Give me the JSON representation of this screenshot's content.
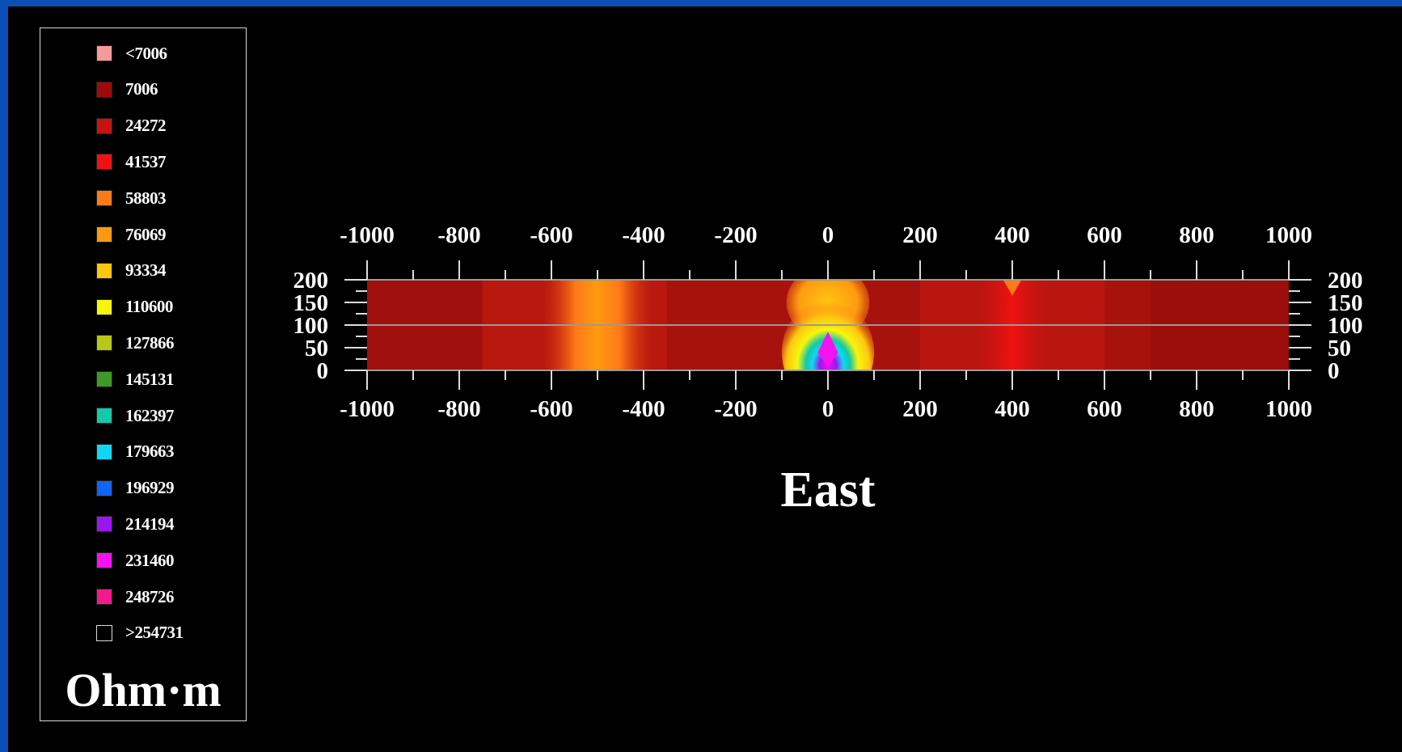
{
  "chart_data": {
    "type": "heatmap",
    "title": "",
    "xlabel": "East",
    "ylabel": "",
    "xlim": [
      -1000,
      1000
    ],
    "ylim": [
      0,
      200
    ],
    "x_ticks": [
      -1000,
      -800,
      -600,
      -400,
      -200,
      0,
      200,
      400,
      600,
      800,
      1000
    ],
    "y_ticks": [
      0,
      50,
      100,
      150,
      200
    ],
    "x_tick_labels": [
      "-1000",
      "-800",
      "-600",
      "-400",
      "-200",
      "0",
      "200",
      "400",
      "600",
      "800",
      "1000"
    ],
    "y_tick_labels": [
      "0",
      "50",
      "100",
      "150",
      "200"
    ],
    "grid_lines_y": [
      100
    ],
    "colorbar": {
      "unit": "Ohm·m",
      "entries": [
        {
          "label": "<7006",
          "color": "#f59a9a"
        },
        {
          "label": "7006",
          "color": "#9e0a0a"
        },
        {
          "label": "24272",
          "color": "#c81410"
        },
        {
          "label": "41537",
          "color": "#f01212"
        },
        {
          "label": "58803",
          "color": "#ff7a18"
        },
        {
          "label": "76069",
          "color": "#ff9a10"
        },
        {
          "label": "93334",
          "color": "#ffc610"
        },
        {
          "label": "110600",
          "color": "#f6f60c"
        },
        {
          "label": "127866",
          "color": "#b8c818"
        },
        {
          "label": "145131",
          "color": "#3c9a28"
        },
        {
          "label": "162397",
          "color": "#14c8a8"
        },
        {
          "label": "179663",
          "color": "#10d8f4"
        },
        {
          "label": "196929",
          "color": "#1264f4"
        },
        {
          "label": "214194",
          "color": "#9a16ee"
        },
        {
          "label": "231460",
          "color": "#f412ee"
        },
        {
          "label": "248726",
          "color": "#f41a8e"
        },
        {
          "label": ">254731",
          "color": "#000000"
        }
      ]
    },
    "background_value_color": "#a8120c",
    "vertical_bands": [
      {
        "x_center": -500,
        "half_width": 75,
        "color": "#ff9a10"
      },
      {
        "x_center": 400,
        "half_width": 55,
        "color": "#f01212"
      }
    ],
    "anomaly": {
      "x": 0,
      "y": 40,
      "note": "high resistivity body",
      "colors": [
        "#ffc610",
        "#f6f60c",
        "#14c8a8",
        "#10d8f4",
        "#9a16ee",
        "#f412ee"
      ]
    }
  }
}
